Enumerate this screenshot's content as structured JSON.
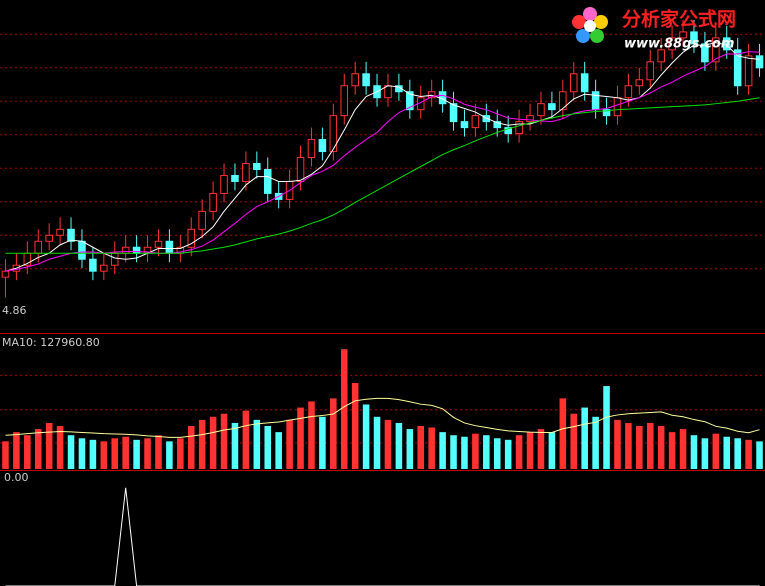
{
  "chart_data": [
    {
      "type": "candlestick",
      "open": [
        5.2,
        5.3,
        5.4,
        5.6,
        5.8,
        5.9,
        6.0,
        5.8,
        5.5,
        5.3,
        5.4,
        5.6,
        5.7,
        5.6,
        5.7,
        5.8,
        5.6,
        5.7,
        6.0,
        6.3,
        6.6,
        6.9,
        6.8,
        7.1,
        7.0,
        6.6,
        6.5,
        6.8,
        7.2,
        7.5,
        7.3,
        7.9,
        8.4,
        8.6,
        8.4,
        8.2,
        8.4,
        8.3,
        8.0,
        8.2,
        8.3,
        8.1,
        7.8,
        7.7,
        7.9,
        7.8,
        7.7,
        7.6,
        7.8,
        7.9,
        8.1,
        8.0,
        8.3,
        8.6,
        8.3,
        8.0,
        7.9,
        8.2,
        8.4,
        8.5,
        8.8,
        9.0,
        9.2,
        9.3,
        9.1,
        8.8,
        9.2,
        9.0,
        8.4,
        8.9
      ],
      "high": [
        5.5,
        5.6,
        5.8,
        6.0,
        6.1,
        6.2,
        6.2,
        6.0,
        5.7,
        5.6,
        5.8,
        5.9,
        5.9,
        5.9,
        6.0,
        6.0,
        5.9,
        6.2,
        6.5,
        6.8,
        7.1,
        7.1,
        7.3,
        7.3,
        7.2,
        6.8,
        7.0,
        7.4,
        7.7,
        7.7,
        8.1,
        8.6,
        8.8,
        8.8,
        8.6,
        8.6,
        8.6,
        8.5,
        8.4,
        8.5,
        8.5,
        8.3,
        8.0,
        8.1,
        8.1,
        8.0,
        7.9,
        8.0,
        8.1,
        8.3,
        8.3,
        8.5,
        8.8,
        8.8,
        8.5,
        8.2,
        8.4,
        8.6,
        8.7,
        9.0,
        9.2,
        9.4,
        9.5,
        9.5,
        9.3,
        9.4,
        9.4,
        9.2,
        9.1,
        9.1
      ],
      "low": [
        4.86,
        5.15,
        5.25,
        5.45,
        5.65,
        5.75,
        5.65,
        5.35,
        5.15,
        5.15,
        5.25,
        5.45,
        5.45,
        5.45,
        5.55,
        5.45,
        5.45,
        5.55,
        5.85,
        6.15,
        6.45,
        6.65,
        6.65,
        6.85,
        6.45,
        6.35,
        6.35,
        6.65,
        7.05,
        7.15,
        7.15,
        7.75,
        8.25,
        8.25,
        8.05,
        8.05,
        8.15,
        7.85,
        7.85,
        8.05,
        7.95,
        7.65,
        7.55,
        7.55,
        7.65,
        7.55,
        7.45,
        7.45,
        7.65,
        7.75,
        7.85,
        7.85,
        8.15,
        8.15,
        7.85,
        7.75,
        7.75,
        8.05,
        8.25,
        8.35,
        8.65,
        8.85,
        9.05,
        8.95,
        8.65,
        8.65,
        8.85,
        8.25,
        8.25,
        8.55
      ],
      "close": [
        5.3,
        5.4,
        5.6,
        5.8,
        5.9,
        6.0,
        5.8,
        5.5,
        5.3,
        5.4,
        5.6,
        5.7,
        5.6,
        5.7,
        5.8,
        5.6,
        5.7,
        6.0,
        6.3,
        6.6,
        6.9,
        6.8,
        7.1,
        7.0,
        6.6,
        6.5,
        6.8,
        7.2,
        7.5,
        7.3,
        7.9,
        8.4,
        8.6,
        8.4,
        8.2,
        8.4,
        8.3,
        8.0,
        8.2,
        8.3,
        8.1,
        7.8,
        7.7,
        7.9,
        7.8,
        7.7,
        7.6,
        7.8,
        7.9,
        8.1,
        8.0,
        8.3,
        8.6,
        8.3,
        8.0,
        7.9,
        8.2,
        8.4,
        8.5,
        8.8,
        9.0,
        9.2,
        9.3,
        9.1,
        8.8,
        9.2,
        9.0,
        8.4,
        8.9,
        8.7
      ],
      "up_color": "#ff3232",
      "down_color": "#54ffff",
      "series": [
        {
          "color": "#ffffff",
          "values": [
            5.3,
            5.35,
            5.43,
            5.53,
            5.6,
            5.74,
            5.82,
            5.8,
            5.7,
            5.6,
            5.52,
            5.5,
            5.52,
            5.6,
            5.68,
            5.68,
            5.68,
            5.76,
            5.88,
            6.04,
            6.3,
            6.52,
            6.74,
            6.88,
            6.88,
            6.8,
            6.8,
            6.82,
            6.92,
            7.06,
            7.34,
            7.66,
            8.0,
            8.22,
            8.3,
            8.4,
            8.38,
            8.26,
            8.22,
            8.24,
            8.18,
            8.08,
            8.02,
            7.96,
            7.86,
            7.78,
            7.74,
            7.76,
            7.76,
            7.82,
            7.88,
            8.02,
            8.18,
            8.26,
            8.24,
            8.22,
            8.2,
            8.16,
            8.2,
            8.36,
            8.58,
            8.78,
            8.96,
            9.08,
            9.08,
            9.12,
            9.08,
            8.9,
            8.86,
            8.84
          ]
        },
        {
          "color": "#ff00ff",
          "values": [
            5.3,
            5.33,
            5.37,
            5.42,
            5.5,
            5.55,
            5.6,
            5.62,
            5.62,
            5.6,
            5.62,
            5.63,
            5.63,
            5.62,
            5.6,
            5.6,
            5.62,
            5.66,
            5.72,
            5.82,
            5.96,
            6.1,
            6.25,
            6.38,
            6.46,
            6.55,
            6.65,
            6.78,
            6.9,
            6.97,
            7.07,
            7.23,
            7.37,
            7.5,
            7.62,
            7.8,
            7.95,
            8.04,
            8.12,
            8.22,
            8.24,
            8.18,
            8.09,
            8.04,
            8.0,
            7.93,
            7.86,
            7.84,
            7.83,
            7.81,
            7.8,
            7.85,
            7.94,
            7.98,
            8.0,
            8.02,
            8.08,
            8.14,
            8.2,
            8.28,
            8.38,
            8.46,
            8.56,
            8.64,
            8.72,
            8.85,
            8.93,
            8.93,
            8.97,
            8.96
          ]
        },
        {
          "color": "#00e000",
          "values": [
            5.6,
            5.6,
            5.6,
            5.6,
            5.6,
            5.6,
            5.6,
            5.6,
            5.6,
            5.6,
            5.6,
            5.6,
            5.6,
            5.6,
            5.6,
            5.6,
            5.6,
            5.62,
            5.64,
            5.67,
            5.7,
            5.74,
            5.79,
            5.84,
            5.88,
            5.92,
            5.97,
            6.03,
            6.1,
            6.16,
            6.24,
            6.34,
            6.45,
            6.55,
            6.65,
            6.75,
            6.85,
            6.95,
            7.05,
            7.15,
            7.25,
            7.33,
            7.4,
            7.48,
            7.55,
            7.62,
            7.68,
            7.73,
            7.78,
            7.82,
            7.86,
            7.9,
            7.93,
            7.95,
            7.97,
            7.98,
            8.0,
            8.01,
            8.02,
            8.03,
            8.04,
            8.05,
            8.06,
            8.07,
            8.08,
            8.1,
            8.12,
            8.14,
            8.17,
            8.2
          ]
        }
      ],
      "ylim": [
        4.3,
        9.8
      ],
      "yticks": [
        5.34,
        5.9,
        6.46,
        7.02,
        7.58,
        8.14,
        8.7,
        9.26
      ],
      "grid": true,
      "grid_color": "#a00000"
    },
    {
      "type": "bar",
      "values": [
        90000,
        120000,
        110000,
        130000,
        150000,
        140000,
        110000,
        100000,
        95000,
        90000,
        100000,
        105000,
        95000,
        100000,
        110000,
        90000,
        100000,
        140000,
        160000,
        170000,
        180000,
        150000,
        190000,
        160000,
        140000,
        120000,
        160000,
        200000,
        220000,
        170000,
        230000,
        390000,
        280000,
        210000,
        170000,
        160000,
        150000,
        130000,
        140000,
        135000,
        120000,
        110000,
        105000,
        115000,
        110000,
        100000,
        95000,
        110000,
        120000,
        130000,
        120000,
        230000,
        180000,
        200000,
        170000,
        270000,
        160000,
        150000,
        140000,
        150000,
        140000,
        120000,
        130000,
        110000,
        100000,
        115000,
        105000,
        100000,
        95000,
        90000
      ],
      "series": [
        {
          "color": "#ffff99",
          "values": [
            110000,
            112000,
            115000,
            118000,
            120000,
            122000,
            121000,
            119000,
            117000,
            115000,
            114000,
            113000,
            111000,
            108000,
            106000,
            103000,
            103000,
            107000,
            112000,
            119000,
            127000,
            132000,
            141000,
            147000,
            150000,
            153000,
            159000,
            165000,
            171000,
            174000,
            179000,
            203000,
            222000,
            227000,
            230000,
            230000,
            226000,
            219000,
            211000,
            207000,
            196000,
            168000,
            150000,
            141000,
            135000,
            129000,
            124000,
            122000,
            120000,
            119000,
            119000,
            131000,
            138000,
            146000,
            152000,
            169000,
            176000,
            180000,
            182000,
            184000,
            186000,
            175000,
            170000,
            161000,
            154000,
            139000,
            133000,
            123000,
            118000,
            127960.8
          ]
        }
      ],
      "value_label": "MA10: 127960.80",
      "ylim": [
        0,
        420000
      ],
      "yticks": [
        85000,
        193000,
        305000
      ],
      "grid": true,
      "grid_color": "#a00000"
    },
    {
      "type": "line",
      "values": [
        0,
        0,
        0,
        0,
        0,
        0,
        0,
        0,
        0,
        0,
        0,
        100,
        0,
        0,
        0,
        0,
        0,
        0,
        0,
        0,
        0,
        0,
        0,
        0,
        0,
        0,
        0,
        0,
        0,
        0,
        0,
        0,
        0,
        0,
        0,
        0,
        0,
        0,
        0,
        0,
        0,
        0,
        0,
        0,
        0,
        0,
        0,
        0,
        0,
        0,
        0,
        0,
        0,
        0,
        0,
        0,
        0,
        0,
        0,
        0,
        0,
        0,
        0,
        0,
        0,
        0,
        0,
        0,
        0,
        0
      ],
      "color": "#ffffff",
      "value_label": "0.00",
      "ylim": [
        0,
        110
      ]
    }
  ],
  "watermark": {
    "title": "分析家公式网",
    "url": "www.88gs.com"
  }
}
